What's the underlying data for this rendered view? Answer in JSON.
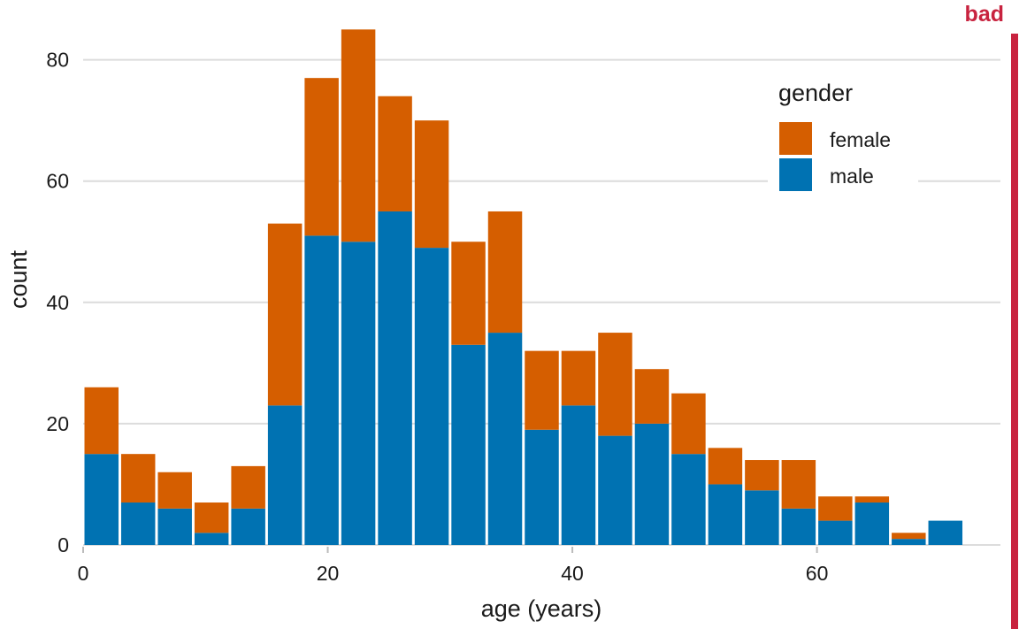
{
  "chart_data": {
    "type": "bar",
    "stacked": true,
    "xlabel": "age (years)",
    "ylabel": "count",
    "xlim": [
      0,
      75
    ],
    "ylim": [
      0,
      85
    ],
    "xticks": [
      0,
      20,
      40,
      60
    ],
    "yticks": [
      0,
      20,
      40,
      60,
      80
    ],
    "grid": "horizontal",
    "bin_width": 3,
    "x": [
      1.5,
      4.5,
      7.5,
      10.5,
      13.5,
      16.5,
      19.5,
      22.5,
      25.5,
      28.5,
      31.5,
      34.5,
      37.5,
      40.5,
      43.5,
      46.5,
      49.5,
      52.5,
      55.5,
      58.5,
      61.5,
      64.5,
      67.5,
      70.5
    ],
    "series": [
      {
        "name": "male",
        "color": "#0072B2",
        "values": [
          15,
          7,
          6,
          2,
          6,
          23,
          51,
          50,
          55,
          49,
          33,
          35,
          19,
          23,
          18,
          20,
          15,
          10,
          9,
          6,
          4,
          7,
          1,
          4
        ]
      },
      {
        "name": "female",
        "color": "#D55E00",
        "values": [
          11,
          8,
          6,
          5,
          7,
          30,
          26,
          35,
          19,
          21,
          17,
          20,
          13,
          9,
          17,
          9,
          10,
          6,
          5,
          8,
          4,
          1,
          1,
          0
        ]
      }
    ],
    "legend": {
      "title": "gender",
      "position": "top-right",
      "items": [
        {
          "label": "female",
          "color": "#D55E00"
        },
        {
          "label": "male",
          "color": "#0072B2"
        }
      ]
    },
    "annotation": {
      "text": "bad",
      "color": "#C8233F"
    }
  }
}
